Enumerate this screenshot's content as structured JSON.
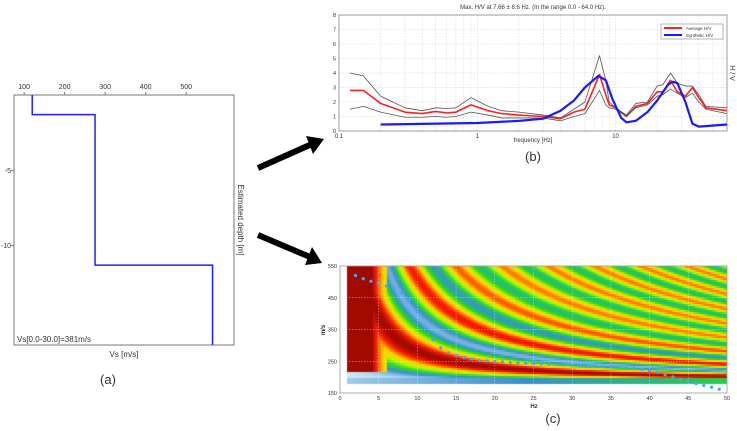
{
  "chart_data": [
    {
      "type": "line",
      "panel_label": "(a)",
      "xlabel": "Vs [m/s]",
      "ylabel": "Estimated depth [m]",
      "x_ticks": [
        100,
        200,
        300,
        400,
        500
      ],
      "y_ticks": [
        -5,
        -10
      ],
      "xlim": [
        75,
        618
      ],
      "ylim": [
        -16.6,
        0
      ],
      "x_axis_position": "top",
      "annotation": "Vs[0.0-30.0]=381m/s",
      "series": [
        {
          "color": "#2020ff",
          "x": [
            120,
            120,
            275,
            275,
            565,
            565
          ],
          "y": [
            0,
            -1.3,
            -1.3,
            -11.3,
            -11.3,
            -16.6
          ]
        }
      ]
    },
    {
      "type": "line",
      "panel_label": "(b)",
      "title": "Max. H/V at 7.66 ± 6.6 Hz. (In the range 0.0 - 64.0 Hz).",
      "xlabel": "frequency [Hz]",
      "ylabel": "H / V",
      "x_scale": "log",
      "xlim": [
        0.1,
        64
      ],
      "ylim": [
        0,
        8
      ],
      "x_ticks": [
        "0.1",
        "1",
        "10"
      ],
      "y_ticks": [
        0,
        1,
        2,
        3,
        4,
        5,
        6,
        7,
        8
      ],
      "grid": true,
      "legend_position": "top-right",
      "series": [
        {
          "name": "Average H/V",
          "color": "#ff2020",
          "x": [
            0.12,
            0.15,
            0.2,
            0.3,
            0.4,
            0.5,
            0.6,
            0.7,
            0.9,
            1.2,
            1.5,
            2,
            3,
            4,
            5,
            6,
            7,
            7.66,
            8.5,
            9,
            10,
            12,
            14,
            17,
            20,
            22,
            25,
            28,
            32,
            36,
            40,
            45,
            64
          ],
          "y": [
            2.8,
            2.8,
            1.9,
            1.3,
            1.2,
            1.35,
            1.25,
            1.3,
            1.8,
            1.4,
            1.2,
            1.1,
            1.0,
            0.85,
            1.3,
            1.5,
            3.0,
            3.9,
            2.5,
            1.8,
            1.6,
            1.0,
            1.7,
            1.9,
            2.7,
            2.7,
            3.5,
            2.7,
            2.4,
            3.0,
            2.3,
            1.6,
            1.4
          ]
        },
        {
          "color": "#555555",
          "x": [
            0.12,
            0.15,
            0.2,
            0.3,
            0.4,
            0.5,
            0.6,
            0.7,
            0.9,
            1.2,
            1.5,
            2,
            3,
            4,
            5,
            6,
            7,
            7.66,
            8.5,
            9,
            10,
            12,
            14,
            17,
            20,
            22,
            25,
            28,
            32,
            36,
            40,
            45,
            64
          ],
          "y": [
            4.0,
            3.8,
            2.4,
            1.6,
            1.4,
            1.6,
            1.55,
            1.6,
            2.3,
            1.7,
            1.4,
            1.3,
            1.1,
            0.9,
            1.5,
            2.0,
            4.0,
            5.2,
            3.5,
            2.0,
            1.6,
            1.1,
            1.9,
            2.0,
            3.1,
            3.2,
            4.0,
            3.3,
            3.1,
            3.1,
            2.5,
            1.7,
            1.6
          ]
        },
        {
          "color": "#555555",
          "x": [
            0.12,
            0.15,
            0.2,
            0.3,
            0.4,
            0.5,
            0.6,
            0.7,
            0.9,
            1.2,
            1.5,
            2,
            3,
            4,
            5,
            6,
            7,
            7.66,
            8.5,
            9,
            10,
            12,
            14,
            17,
            20,
            22,
            25,
            28,
            32,
            36,
            40,
            45,
            64
          ],
          "y": [
            1.5,
            1.7,
            1.3,
            0.95,
            0.95,
            1.0,
            0.95,
            1.0,
            1.3,
            1.1,
            0.9,
            0.9,
            0.9,
            0.7,
            1.0,
            1.2,
            2.2,
            2.8,
            1.8,
            1.6,
            1.5,
            1.0,
            1.6,
            1.8,
            2.4,
            2.5,
            2.9,
            2.6,
            2.3,
            2.6,
            2.0,
            1.5,
            1.2
          ]
        },
        {
          "name": "Synthetic H/V",
          "color": "#1a1aff",
          "x": [
            0.2,
            1,
            2,
            3,
            4,
            5,
            6,
            7.5,
            8.5,
            9.5,
            11,
            12,
            14,
            17,
            20,
            24,
            26,
            28,
            32,
            36,
            40,
            64
          ],
          "y": [
            0.45,
            0.55,
            0.7,
            0.85,
            1.4,
            2.1,
            3.0,
            3.8,
            3.5,
            2.2,
            0.9,
            0.6,
            0.7,
            1.3,
            2.1,
            3.2,
            3.4,
            3.3,
            2.0,
            0.5,
            0.3,
            0.45
          ]
        }
      ]
    },
    {
      "type": "heatmap",
      "panel_label": "(c)",
      "xlabel": "Hz",
      "ylabel": "m/s",
      "xlim": [
        0,
        50
      ],
      "ylim": [
        150,
        550
      ],
      "x_ticks": [
        0,
        5,
        10,
        15,
        20,
        25,
        30,
        35,
        40,
        45,
        50
      ],
      "y_ticks": [
        150,
        250,
        350,
        450,
        550
      ],
      "grid": true,
      "colormap": [
        "#d0e8f5",
        "#3a8fd0",
        "#20e020",
        "#c8f000",
        "#ffd000",
        "#ff2000",
        "#7a0000"
      ],
      "points_color": "#3fa9f5",
      "points": {
        "x": [
          2,
          3,
          4,
          5,
          6,
          7,
          8,
          9,
          10,
          11,
          12,
          13,
          14,
          15,
          16,
          17,
          18,
          19,
          20,
          21,
          22,
          23,
          24,
          25,
          26,
          27,
          28,
          29,
          30,
          31,
          32,
          33,
          34,
          35,
          36,
          37,
          38,
          39,
          40,
          41,
          42,
          43,
          44,
          45,
          46,
          47,
          48,
          49
        ],
        "y": [
          520,
          510,
          502,
          495,
          487,
          478,
          465,
          445,
          405,
          358,
          318,
          292,
          277,
          268,
          262,
          257,
          253,
          251,
          249,
          248,
          246,
          245,
          244,
          243,
          242,
          241,
          240,
          239,
          238,
          237,
          236,
          235,
          234,
          233,
          232,
          230,
          228,
          224,
          220,
          215,
          208,
          201,
          193,
          186,
          180,
          174,
          168,
          162
        ]
      }
    }
  ]
}
